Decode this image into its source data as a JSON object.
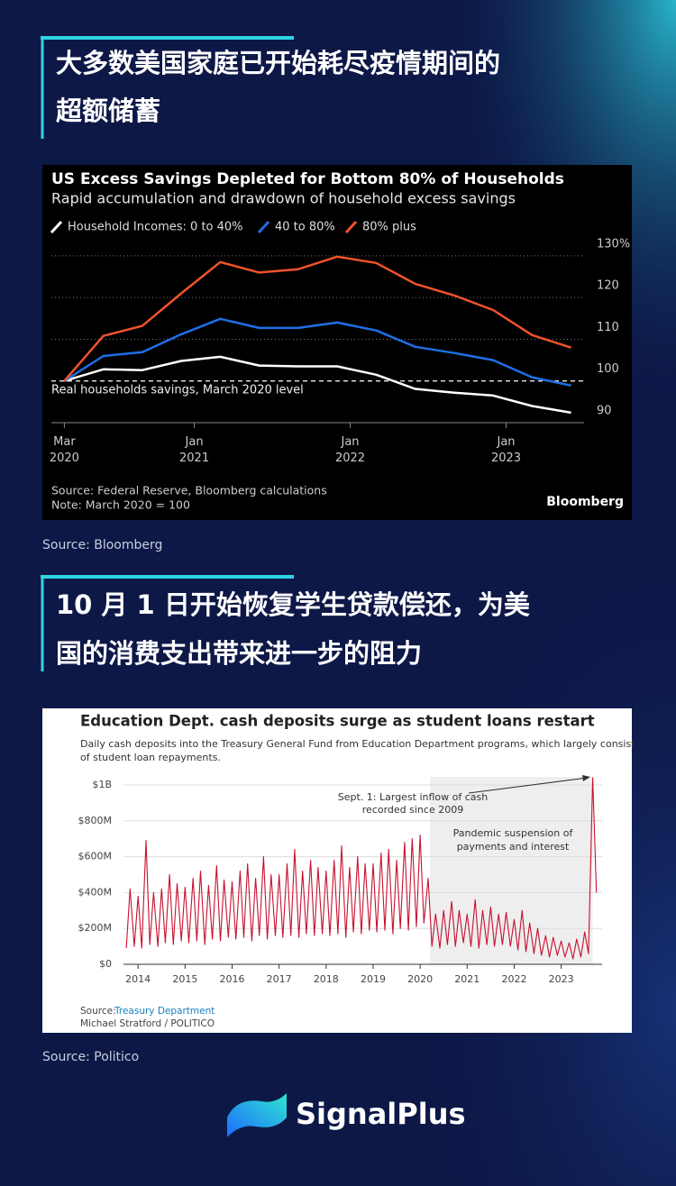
{
  "headings": [
    [
      "大多数美国家庭已开始耗尽疫情期间的",
      "超额储蓄"
    ],
    [
      "10 月 1 日开始恢复学生贷款偿还，为美",
      "国的消费支出带来进一步的阻力"
    ]
  ],
  "sources": [
    "Source: Bloomberg",
    "Source: Politico"
  ],
  "brand": "SignalPlus",
  "chart_data": [
    {
      "type": "line",
      "title": "US Excess Savings Depleted for Bottom 80% of Households",
      "subtitle": "Rapid accumulation and drawdown of household excess savings",
      "x": [
        "2020-03",
        "2020-06",
        "2020-09",
        "2020-12",
        "2021-03",
        "2021-06",
        "2021-09",
        "2021-12",
        "2022-03",
        "2022-06",
        "2022-09",
        "2022-12",
        "2023-03",
        "2023-06"
      ],
      "series": [
        {
          "name": "Household Incomes: 0 to 40%",
          "color": "#ffffff",
          "values": [
            100,
            102.8,
            102.6,
            104.8,
            105.8,
            103.7,
            103.5,
            103.5,
            101.5,
            98.1,
            97.2,
            96.5,
            94,
            92.4
          ]
        },
        {
          "name": "40 to 80%",
          "color": "#1f6fe5",
          "values": [
            100,
            106,
            106.9,
            111.2,
            114.9,
            112.7,
            112.7,
            114,
            112.1,
            108.2,
            106.7,
            105,
            100.9,
            98.9
          ]
        },
        {
          "name": "80% plus",
          "color": "#f0532a",
          "values": [
            100,
            110.8,
            113.2,
            121,
            128.5,
            126,
            126.8,
            129.8,
            128.3,
            123.3,
            120.5,
            117,
            111,
            108
          ]
        }
      ],
      "xlim": [
        "2020-02",
        "2023-07"
      ],
      "xticks": [
        {
          "value": "2020-03",
          "label": "Mar\n2020"
        },
        {
          "value": "2021-01",
          "label": "Jan\n2021"
        },
        {
          "value": "2022-01",
          "label": "Jan\n2022"
        },
        {
          "value": "2023-01",
          "label": "Jan\n2023"
        }
      ],
      "ylim": [
        90,
        133
      ],
      "yticks": [
        90,
        100,
        110,
        120,
        {
          "value": 130,
          "label": "130%"
        }
      ],
      "reference_line": 100,
      "annotation": "Real households savings, March 2020 level",
      "source": "Source: Federal Reserve, Bloomberg calculations",
      "note": "Note: March 2020 = 100",
      "logo": "Bloomberg"
    },
    {
      "type": "line",
      "title": "Education Dept. cash deposits surge as student loans restart",
      "subtitle": [
        "Daily cash deposits into the Treasury General Fund from Education Department programs, which largely consist",
        "of student loan repayments."
      ],
      "x": [
        2013.75,
        2013.83,
        2013.92,
        2014.0,
        2014.08,
        2014.17,
        2014.25,
        2014.33,
        2014.42,
        2014.5,
        2014.58,
        2014.67,
        2014.75,
        2014.83,
        2014.92,
        2015.0,
        2015.08,
        2015.17,
        2015.25,
        2015.33,
        2015.42,
        2015.5,
        2015.58,
        2015.67,
        2015.75,
        2015.83,
        2015.92,
        2016.0,
        2016.08,
        2016.17,
        2016.25,
        2016.33,
        2016.42,
        2016.5,
        2016.58,
        2016.67,
        2016.75,
        2016.83,
        2016.92,
        2017.0,
        2017.08,
        2017.17,
        2017.25,
        2017.33,
        2017.42,
        2017.5,
        2017.58,
        2017.67,
        2017.75,
        2017.83,
        2017.92,
        2018.0,
        2018.08,
        2018.17,
        2018.25,
        2018.33,
        2018.42,
        2018.5,
        2018.58,
        2018.67,
        2018.75,
        2018.83,
        2018.92,
        2019.0,
        2019.08,
        2019.17,
        2019.25,
        2019.33,
        2019.42,
        2019.5,
        2019.58,
        2019.67,
        2019.75,
        2019.83,
        2019.92,
        2020.0,
        2020.08,
        2020.17,
        2020.25,
        2020.33,
        2020.42,
        2020.5,
        2020.58,
        2020.67,
        2020.75,
        2020.83,
        2020.92,
        2021.0,
        2021.08,
        2021.17,
        2021.25,
        2021.33,
        2021.42,
        2021.5,
        2021.58,
        2021.67,
        2021.75,
        2021.83,
        2021.92,
        2022.0,
        2022.08,
        2022.17,
        2022.25,
        2022.33,
        2022.42,
        2022.5,
        2022.58,
        2022.67,
        2022.75,
        2022.83,
        2022.92,
        2023.0,
        2023.08,
        2023.17,
        2023.25,
        2023.33,
        2023.42,
        2023.5,
        2023.58,
        2023.67,
        2023.75
      ],
      "series": [
        {
          "color": "#c8102e",
          "values": [
            90,
            420,
            100,
            380,
            90,
            690,
            110,
            400,
            100,
            420,
            120,
            500,
            110,
            450,
            130,
            430,
            120,
            480,
            130,
            520,
            110,
            440,
            140,
            550,
            130,
            470,
            150,
            460,
            140,
            520,
            150,
            560,
            130,
            480,
            160,
            600,
            140,
            500,
            160,
            500,
            150,
            560,
            160,
            640,
            150,
            520,
            170,
            580,
            160,
            540,
            170,
            520,
            160,
            580,
            170,
            660,
            150,
            540,
            180,
            600,
            170,
            560,
            190,
            560,
            180,
            620,
            190,
            640,
            170,
            580,
            200,
            680,
            190,
            700,
            210,
            720,
            230,
            480,
            100,
            280,
            90,
            300,
            110,
            350,
            100,
            300,
            120,
            280,
            100,
            360,
            90,
            300,
            110,
            320,
            100,
            280,
            110,
            290,
            100,
            250,
            80,
            300,
            70,
            230,
            60,
            200,
            50,
            160,
            40,
            150,
            50,
            130,
            40,
            120,
            30,
            140,
            40,
            180,
            60,
            1040,
            400
          ]
        }
      ],
      "xlim": [
        2013.69,
        2023.87
      ],
      "xticks": [
        2014,
        2015,
        2016,
        2017,
        2018,
        2019,
        2020,
        2021,
        2022,
        2023
      ],
      "ylim": [
        0,
        1045
      ],
      "yticks": [
        {
          "value": 0,
          "label": "$0"
        },
        {
          "value": 200,
          "label": "$200M"
        },
        {
          "value": 400,
          "label": "$400M"
        },
        {
          "value": 600,
          "label": "$600M"
        },
        {
          "value": 800,
          "label": "$800M"
        },
        {
          "value": 1000,
          "label": "$1B"
        }
      ],
      "grid": true,
      "shaded_range": [
        2020.21,
        2023.67
      ],
      "annotations": [
        [
          "Sept. 1: Largest inflow of cash",
          "recorded since 2009"
        ],
        [
          "Pandemic suspension of",
          "payments and interest"
        ]
      ],
      "source_label": "Source:",
      "source": "Treasury Department",
      "credit": "Michael Stratford / POLITICO"
    }
  ]
}
